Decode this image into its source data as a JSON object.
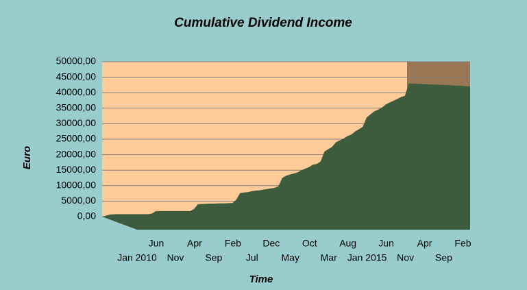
{
  "chart_data": {
    "type": "area",
    "title": "Cumulative Dividend Income",
    "x_label": "Time",
    "y_label": "Euro",
    "categories": [
      "Jan 2010",
      null,
      null,
      null,
      null,
      "Jun",
      null,
      null,
      null,
      null,
      "Nov",
      null,
      null,
      null,
      null,
      "Apr",
      null,
      null,
      null,
      null,
      "Sep",
      null,
      null,
      null,
      null,
      "Feb",
      null,
      null,
      null,
      null,
      "Jul",
      null,
      null,
      null,
      null,
      "Dec",
      null,
      null,
      null,
      null,
      "May",
      null,
      null,
      null,
      null,
      "Oct",
      null,
      null,
      null,
      null,
      "Mar",
      null,
      null,
      null,
      null,
      "Aug",
      null,
      null,
      null,
      null,
      "Jan 2015",
      null,
      null,
      null,
      null,
      "Jun",
      null,
      null,
      null,
      null,
      "Nov",
      null,
      null,
      null,
      null,
      "Apr",
      null,
      null,
      null,
      null,
      "Sep",
      null,
      null,
      null,
      null,
      "Feb",
      null,
      null,
      null,
      null,
      null,
      null,
      null,
      null,
      null,
      null,
      null
    ],
    "values": [
      0,
      300,
      700,
      750,
      800,
      800,
      800,
      800,
      800,
      800,
      800,
      800,
      800,
      1000,
      1800,
      1800,
      1800,
      1800,
      1800,
      1800,
      1800,
      1800,
      1800,
      1800,
      2500,
      4000,
      4100,
      4150,
      4200,
      4200,
      4250,
      4300,
      4300,
      4350,
      4400,
      5500,
      7600,
      7800,
      7900,
      8200,
      8400,
      8500,
      8700,
      8900,
      9100,
      9300,
      9800,
      12500,
      13200,
      13600,
      13900,
      14300,
      15000,
      15500,
      16000,
      16800,
      17000,
      17800,
      21000,
      21800,
      22500,
      24000,
      24600,
      25200,
      26000,
      26500,
      27500,
      28200,
      29000,
      32000,
      33000,
      34000,
      34500,
      35200,
      36200,
      36800,
      37400,
      38000,
      38600,
      39000,
      43000,
      42900,
      42850,
      42800,
      42750,
      42700,
      42650,
      42600,
      42550,
      42500,
      42450,
      42400,
      42300,
      42250,
      42200,
      42100,
      42000
    ],
    "color": "#3d5c3d",
    "ylim": [
      0,
      50000
    ],
    "yticks": [
      {
        "value": 0,
        "label": "0,00"
      },
      {
        "value": 5000,
        "label": "5000,00"
      },
      {
        "value": 10000,
        "label": "10000,00"
      },
      {
        "value": 15000,
        "label": "15000,00"
      },
      {
        "value": 20000,
        "label": "20000,00"
      },
      {
        "value": 25000,
        "label": "25000,00"
      },
      {
        "value": 30000,
        "label": "30000,00"
      },
      {
        "value": 35000,
        "label": "35000,00"
      },
      {
        "value": 40000,
        "label": "40000,00"
      },
      {
        "value": 45000,
        "label": "45000,00"
      },
      {
        "value": 50000,
        "label": "50000,00"
      }
    ],
    "grid": true
  }
}
